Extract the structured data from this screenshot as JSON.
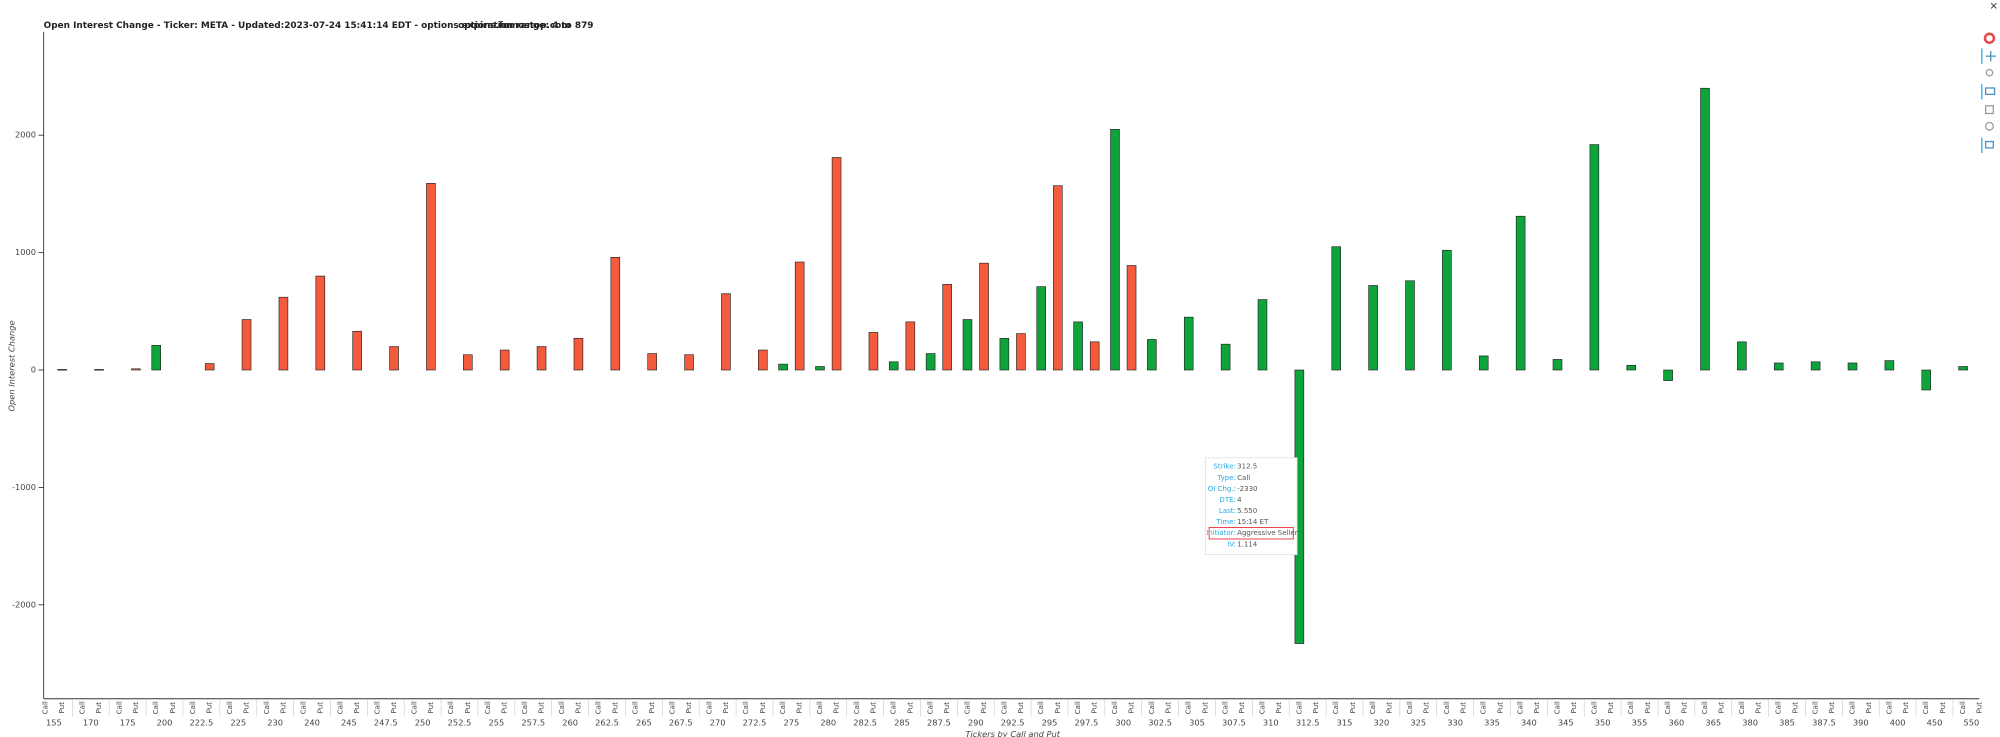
{
  "chart_data": {
    "type": "bar",
    "title": "Open Interest Change - Ticker: META - Updated:2023-07-24 15:41:14 EDT - options expiration range: 4 to 879",
    "source": "options.fomostop.com",
    "x_label": "Tickers by Call and Put",
    "y_label": "Open Interest Change",
    "categories": [
      155,
      170,
      175,
      200,
      222.5,
      225,
      230,
      240,
      245,
      247.5,
      250,
      252.5,
      255,
      257.5,
      260,
      262.5,
      265,
      267.5,
      270,
      272.5,
      275,
      280,
      282.5,
      285,
      287.5,
      290,
      292.5,
      295,
      297.5,
      300,
      302.5,
      305,
      307.5,
      310,
      312.5,
      315,
      320,
      325,
      330,
      335,
      340,
      345,
      350,
      355,
      360,
      365,
      380,
      385,
      387.5,
      390,
      400,
      450,
      550
    ],
    "series": [
      {
        "name": "Call",
        "color": "#0ea33b",
        "values": [
          null,
          null,
          null,
          210,
          null,
          null,
          null,
          null,
          null,
          null,
          null,
          null,
          null,
          null,
          null,
          null,
          null,
          null,
          null,
          null,
          50,
          30,
          null,
          70,
          140,
          430,
          270,
          710,
          410,
          2050,
          260,
          450,
          220,
          600,
          -2330,
          1050,
          720,
          760,
          1020,
          120,
          1310,
          90,
          1920,
          40,
          -90,
          2400,
          240,
          60,
          70,
          60,
          80,
          -170,
          30
        ]
      },
      {
        "name": "Put",
        "color": "#f45a3c",
        "values": [
          5,
          5,
          10,
          null,
          55,
          430,
          620,
          800,
          330,
          200,
          1590,
          130,
          170,
          200,
          270,
          960,
          140,
          130,
          650,
          170,
          920,
          1810,
          320,
          410,
          730,
          910,
          310,
          1570,
          240,
          890,
          null,
          null,
          null,
          null,
          null,
          null,
          null,
          null,
          null,
          null,
          null,
          null,
          null,
          null,
          null,
          null,
          null,
          null,
          null,
          null,
          null,
          null,
          null
        ]
      }
    ],
    "ylim": [
      -2800,
      2880
    ],
    "yticks": [
      -2000,
      -1000,
      0,
      1000,
      2000
    ],
    "tooltip": {
      "rows": [
        {
          "key": "Strike:",
          "value": "312.5"
        },
        {
          "key": "Type:",
          "value": "Call"
        },
        {
          "key": "OI Chg.:",
          "value": "-2330"
        },
        {
          "key": "DTE:",
          "value": "4"
        },
        {
          "key": "Last:",
          "value": "5.550"
        },
        {
          "key": "Time:",
          "value": "15:14 ET"
        },
        {
          "key": "Initiator:",
          "value": "Aggressive Seller"
        },
        {
          "key": "IV:",
          "value": "1.114"
        }
      ]
    }
  }
}
